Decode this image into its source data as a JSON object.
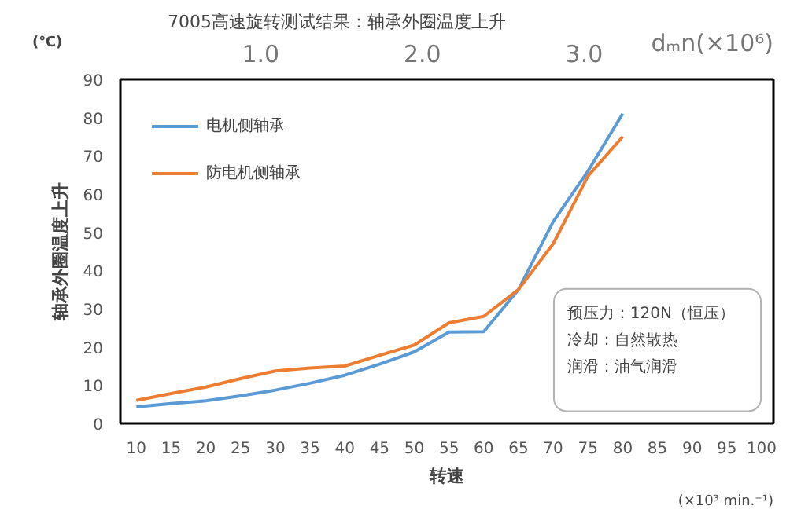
{
  "chart_data": {
    "type": "line",
    "title": "7005高速旋转测试结果：轴承外圈温度上升",
    "xlabel": "转速",
    "ylabel": "轴承外圈温度上升",
    "x2label": "dₘn(×10⁶)",
    "x": [
      10,
      15,
      20,
      25,
      30,
      35,
      40,
      45,
      50,
      55,
      60,
      65,
      70,
      75,
      80
    ],
    "series": [
      {
        "name": "电机侧轴承",
        "color": "#5b9bd5",
        "values": [
          4.3,
          5.2,
          5.9,
          7.2,
          8.7,
          10.5,
          12.6,
          15.5,
          18.7,
          23.9,
          24,
          35,
          52.8,
          66,
          81
        ]
      },
      {
        "name": "防电机侧轴承",
        "color": "#ed7d31",
        "values": [
          6,
          7.8,
          9.5,
          11.7,
          13.7,
          14.5,
          15,
          17.8,
          20.5,
          26.3,
          28,
          35,
          47,
          64.7,
          75
        ]
      }
    ],
    "xlim": [
      7.7,
      101.7
    ],
    "xticks": [
      10,
      15,
      20,
      25,
      30,
      35,
      40,
      45,
      50,
      55,
      60,
      65,
      70,
      75,
      80,
      85,
      90,
      95,
      100
    ],
    "ylim": [
      0,
      90
    ],
    "yticks": [
      0,
      10,
      20,
      30,
      40,
      50,
      60,
      70,
      80,
      90
    ],
    "x2lim": [
      0.133,
      4.17
    ],
    "x2ticks": [
      {
        "value": 1.0,
        "label": "1.0"
      },
      {
        "value": 2.0,
        "label": "2.0"
      },
      {
        "value": 3.0,
        "label": "3.0"
      }
    ],
    "annotations": [
      "(℃)",
      "(×10³ min.⁻¹)",
      "预压力：120N（恒压）",
      "冷却：自然散热",
      "润滑：油气润滑"
    ],
    "legend": "top left",
    "grid": false,
    "marker": "none",
    "line_style": "solid"
  }
}
